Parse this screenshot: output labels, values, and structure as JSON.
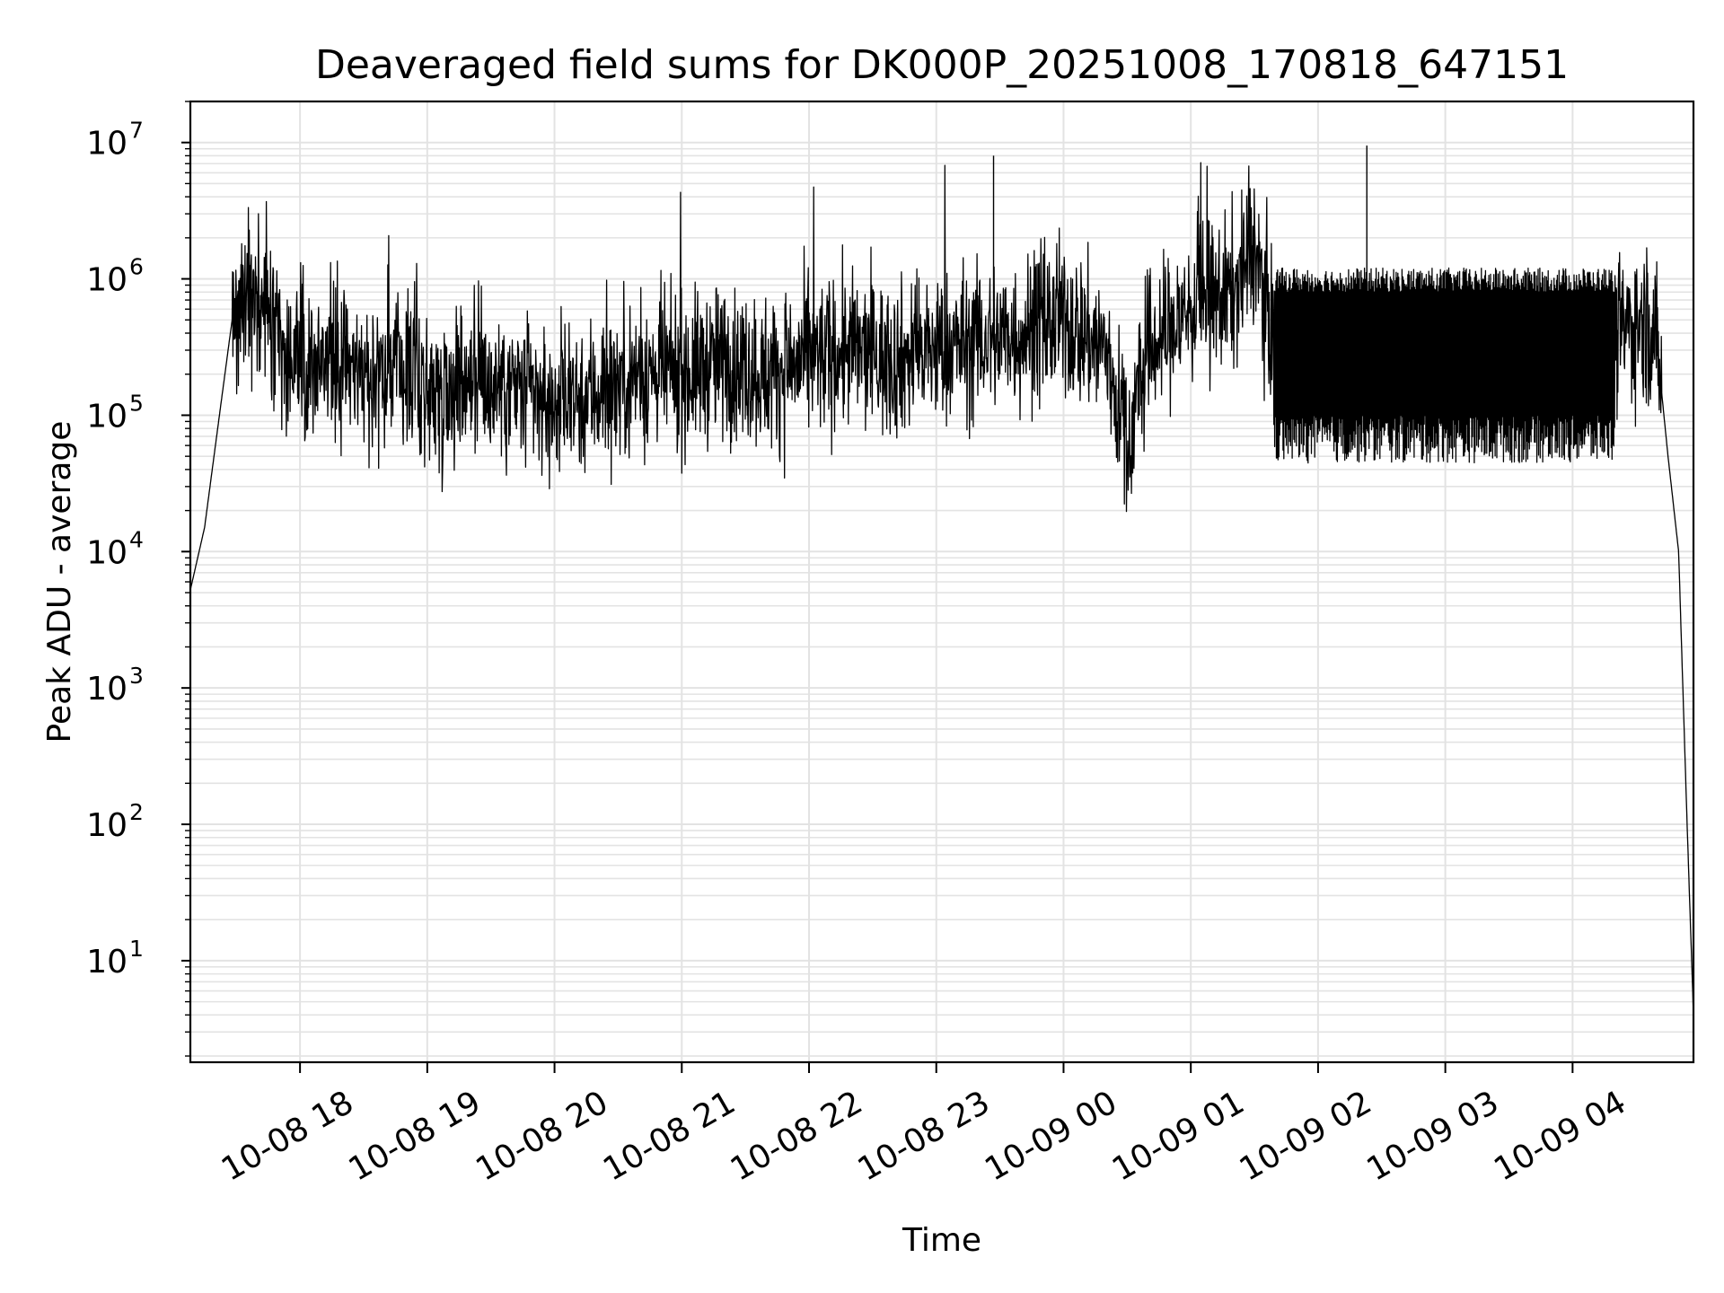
{
  "chart_data": {
    "type": "line",
    "title": "Deaveraged field sums for DK000P_20251008_170818_647151",
    "xlabel": "Time",
    "ylabel": "Peak ADU - average",
    "y_scale": "log",
    "ylim": [
      1.8,
      20000000
    ],
    "xlim": [
      "2025-10-08 17:08:18",
      "2025-10-09 04:57:00"
    ],
    "grid": true,
    "grid_minor": true,
    "x_tick_labels": [
      "10-08 18",
      "10-08 19",
      "10-08 20",
      "10-08 21",
      "10-08 22",
      "10-08 23",
      "10-09 00",
      "10-09 01",
      "10-09 02",
      "10-09 03",
      "10-09 04"
    ],
    "x_tick_values": [
      "2025-10-08 18:00",
      "2025-10-08 19:00",
      "2025-10-08 20:00",
      "2025-10-08 21:00",
      "2025-10-08 22:00",
      "2025-10-08 23:00",
      "2025-10-09 00:00",
      "2025-10-09 01:00",
      "2025-10-09 02:00",
      "2025-10-09 03:00",
      "2025-10-09 04:00"
    ],
    "y_tick_labels": [
      {
        "base": "10",
        "exp": "1",
        "value": 10
      },
      {
        "base": "10",
        "exp": "2",
        "value": 100
      },
      {
        "base": "10",
        "exp": "3",
        "value": 1000
      },
      {
        "base": "10",
        "exp": "4",
        "value": 10000
      },
      {
        "base": "10",
        "exp": "5",
        "value": 100000
      },
      {
        "base": "10",
        "exp": "6",
        "value": 1000000
      },
      {
        "base": "10",
        "exp": "7",
        "value": 10000000
      }
    ],
    "series": [
      {
        "color": "#000000",
        "x": [
          "2025-10-08 17:08",
          "2025-10-08 17:15",
          "2025-10-08 17:22",
          "2025-10-08 17:28",
          "2025-10-08 17:35",
          "2025-10-08 17:42",
          "2025-10-08 17:50",
          "2025-10-08 18:00",
          "2025-10-08 18:15",
          "2025-10-08 18:30",
          "2025-10-08 18:45",
          "2025-10-08 19:00",
          "2025-10-08 19:20",
          "2025-10-08 19:40",
          "2025-10-08 20:00",
          "2025-10-08 20:20",
          "2025-10-08 20:40",
          "2025-10-08 21:00",
          "2025-10-08 21:20",
          "2025-10-08 21:40",
          "2025-10-08 22:00",
          "2025-10-08 22:20",
          "2025-10-08 22:40",
          "2025-10-08 23:00",
          "2025-10-08 23:20",
          "2025-10-08 23:40",
          "2025-10-09 00:00",
          "2025-10-09 00:20",
          "2025-10-09 00:30",
          "2025-10-09 00:40",
          "2025-10-09 01:00",
          "2025-10-09 01:20",
          "2025-10-09 01:30",
          "2025-10-09 01:40",
          "2025-10-09 02:00",
          "2025-10-09 02:20",
          "2025-10-09 02:40",
          "2025-10-09 03:00",
          "2025-10-09 03:20",
          "2025-10-09 03:40",
          "2025-10-09 04:00",
          "2025-10-09 04:20",
          "2025-10-09 04:35",
          "2025-10-09 04:40",
          "2025-10-09 04:45",
          "2025-10-09 04:50",
          "2025-10-09 04:54",
          "2025-10-09 04:57"
        ],
        "values": [
          5000,
          15000,
          100000,
          500000,
          1000000,
          600000,
          300000,
          250000,
          300000,
          200000,
          250000,
          150000,
          200000,
          150000,
          120000,
          150000,
          200000,
          200000,
          250000,
          200000,
          250000,
          300000,
          250000,
          300000,
          350000,
          400000,
          500000,
          300000,
          60000,
          300000,
          600000,
          800000,
          1700000,
          300000,
          300000,
          350000,
          350000,
          350000,
          350000,
          350000,
          350000,
          400000,
          500000,
          300000,
          50000,
          10000,
          100,
          4
        ]
      }
    ],
    "spikes": [
      {
        "x": "2025-10-08 23:27",
        "value": 8000000
      },
      {
        "x": "2025-10-09 02:23",
        "value": 9500000
      }
    ]
  }
}
